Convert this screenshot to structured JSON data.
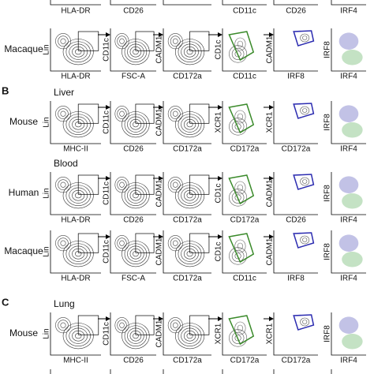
{
  "top_row": {
    "x_labels": [
      "HLA-DR",
      "CD26",
      "CD11c",
      "CD26",
      "IRF4"
    ]
  },
  "rows": [
    {
      "species": "Macaque",
      "panels": [
        {
          "y_label": "Lin",
          "x_label": "HLA-DR"
        },
        {
          "y_label": "CD11c",
          "x_label": "FSC-A"
        },
        {
          "y_label": "CADM1",
          "x_label": "CD172a"
        },
        {
          "y_label": "CD1c",
          "x_label": "CD11c"
        },
        {
          "y_label": "CADM1",
          "x_label": "IRF8"
        },
        {
          "y_label": "IRF8",
          "x_label": "IRF4"
        }
      ]
    },
    {
      "letter": "B",
      "tissue": "Liver",
      "species": "Mouse",
      "panels": [
        {
          "y_label": "Lin",
          "x_label": "MHC-II"
        },
        {
          "y_label": "CD11c",
          "x_label": "CD26"
        },
        {
          "y_label": "CADM1",
          "x_label": "CD172a"
        },
        {
          "y_label": "XCR1",
          "x_label": "CD172a"
        },
        {
          "y_label": "XCR1",
          "x_label": "CD172a"
        },
        {
          "y_label": "IRF8",
          "x_label": "IRF4"
        }
      ]
    },
    {
      "tissue": "Blood",
      "species": "Human",
      "panels": [
        {
          "y_label": "Lin",
          "x_label": "HLA-DR"
        },
        {
          "y_label": "CD11c",
          "x_label": "CD26"
        },
        {
          "y_label": "CADM1",
          "x_label": "CD172a"
        },
        {
          "y_label": "CD1c",
          "x_label": "CD172a"
        },
        {
          "y_label": "CADM1",
          "x_label": "CD26"
        },
        {
          "y_label": "IRF8",
          "x_label": "IRF4"
        }
      ]
    },
    {
      "species": "Macaque",
      "panels": [
        {
          "y_label": "Lin",
          "x_label": "HLA-DR"
        },
        {
          "y_label": "CD11c",
          "x_label": "FSC-A"
        },
        {
          "y_label": "CADM1",
          "x_label": "CD172a"
        },
        {
          "y_label": "CD1c",
          "x_label": "CD11c"
        },
        {
          "y_label": "CADM1",
          "x_label": "IRF8"
        },
        {
          "y_label": "IRF8",
          "x_label": "IRF4"
        }
      ]
    },
    {
      "letter": "C",
      "tissue": "Lung",
      "species": "Mouse",
      "panels": [
        {
          "y_label": "Lin",
          "x_label": "MHC-II"
        },
        {
          "y_label": "CD11c",
          "x_label": "CD26"
        },
        {
          "y_label": "CADM1",
          "x_label": "CD172a"
        },
        {
          "y_label": "XCR1",
          "x_label": "CD172a"
        },
        {
          "y_label": "XCR1",
          "x_label": "CD172a"
        },
        {
          "y_label": "IRF8",
          "x_label": "IRF4"
        }
      ]
    }
  ]
}
